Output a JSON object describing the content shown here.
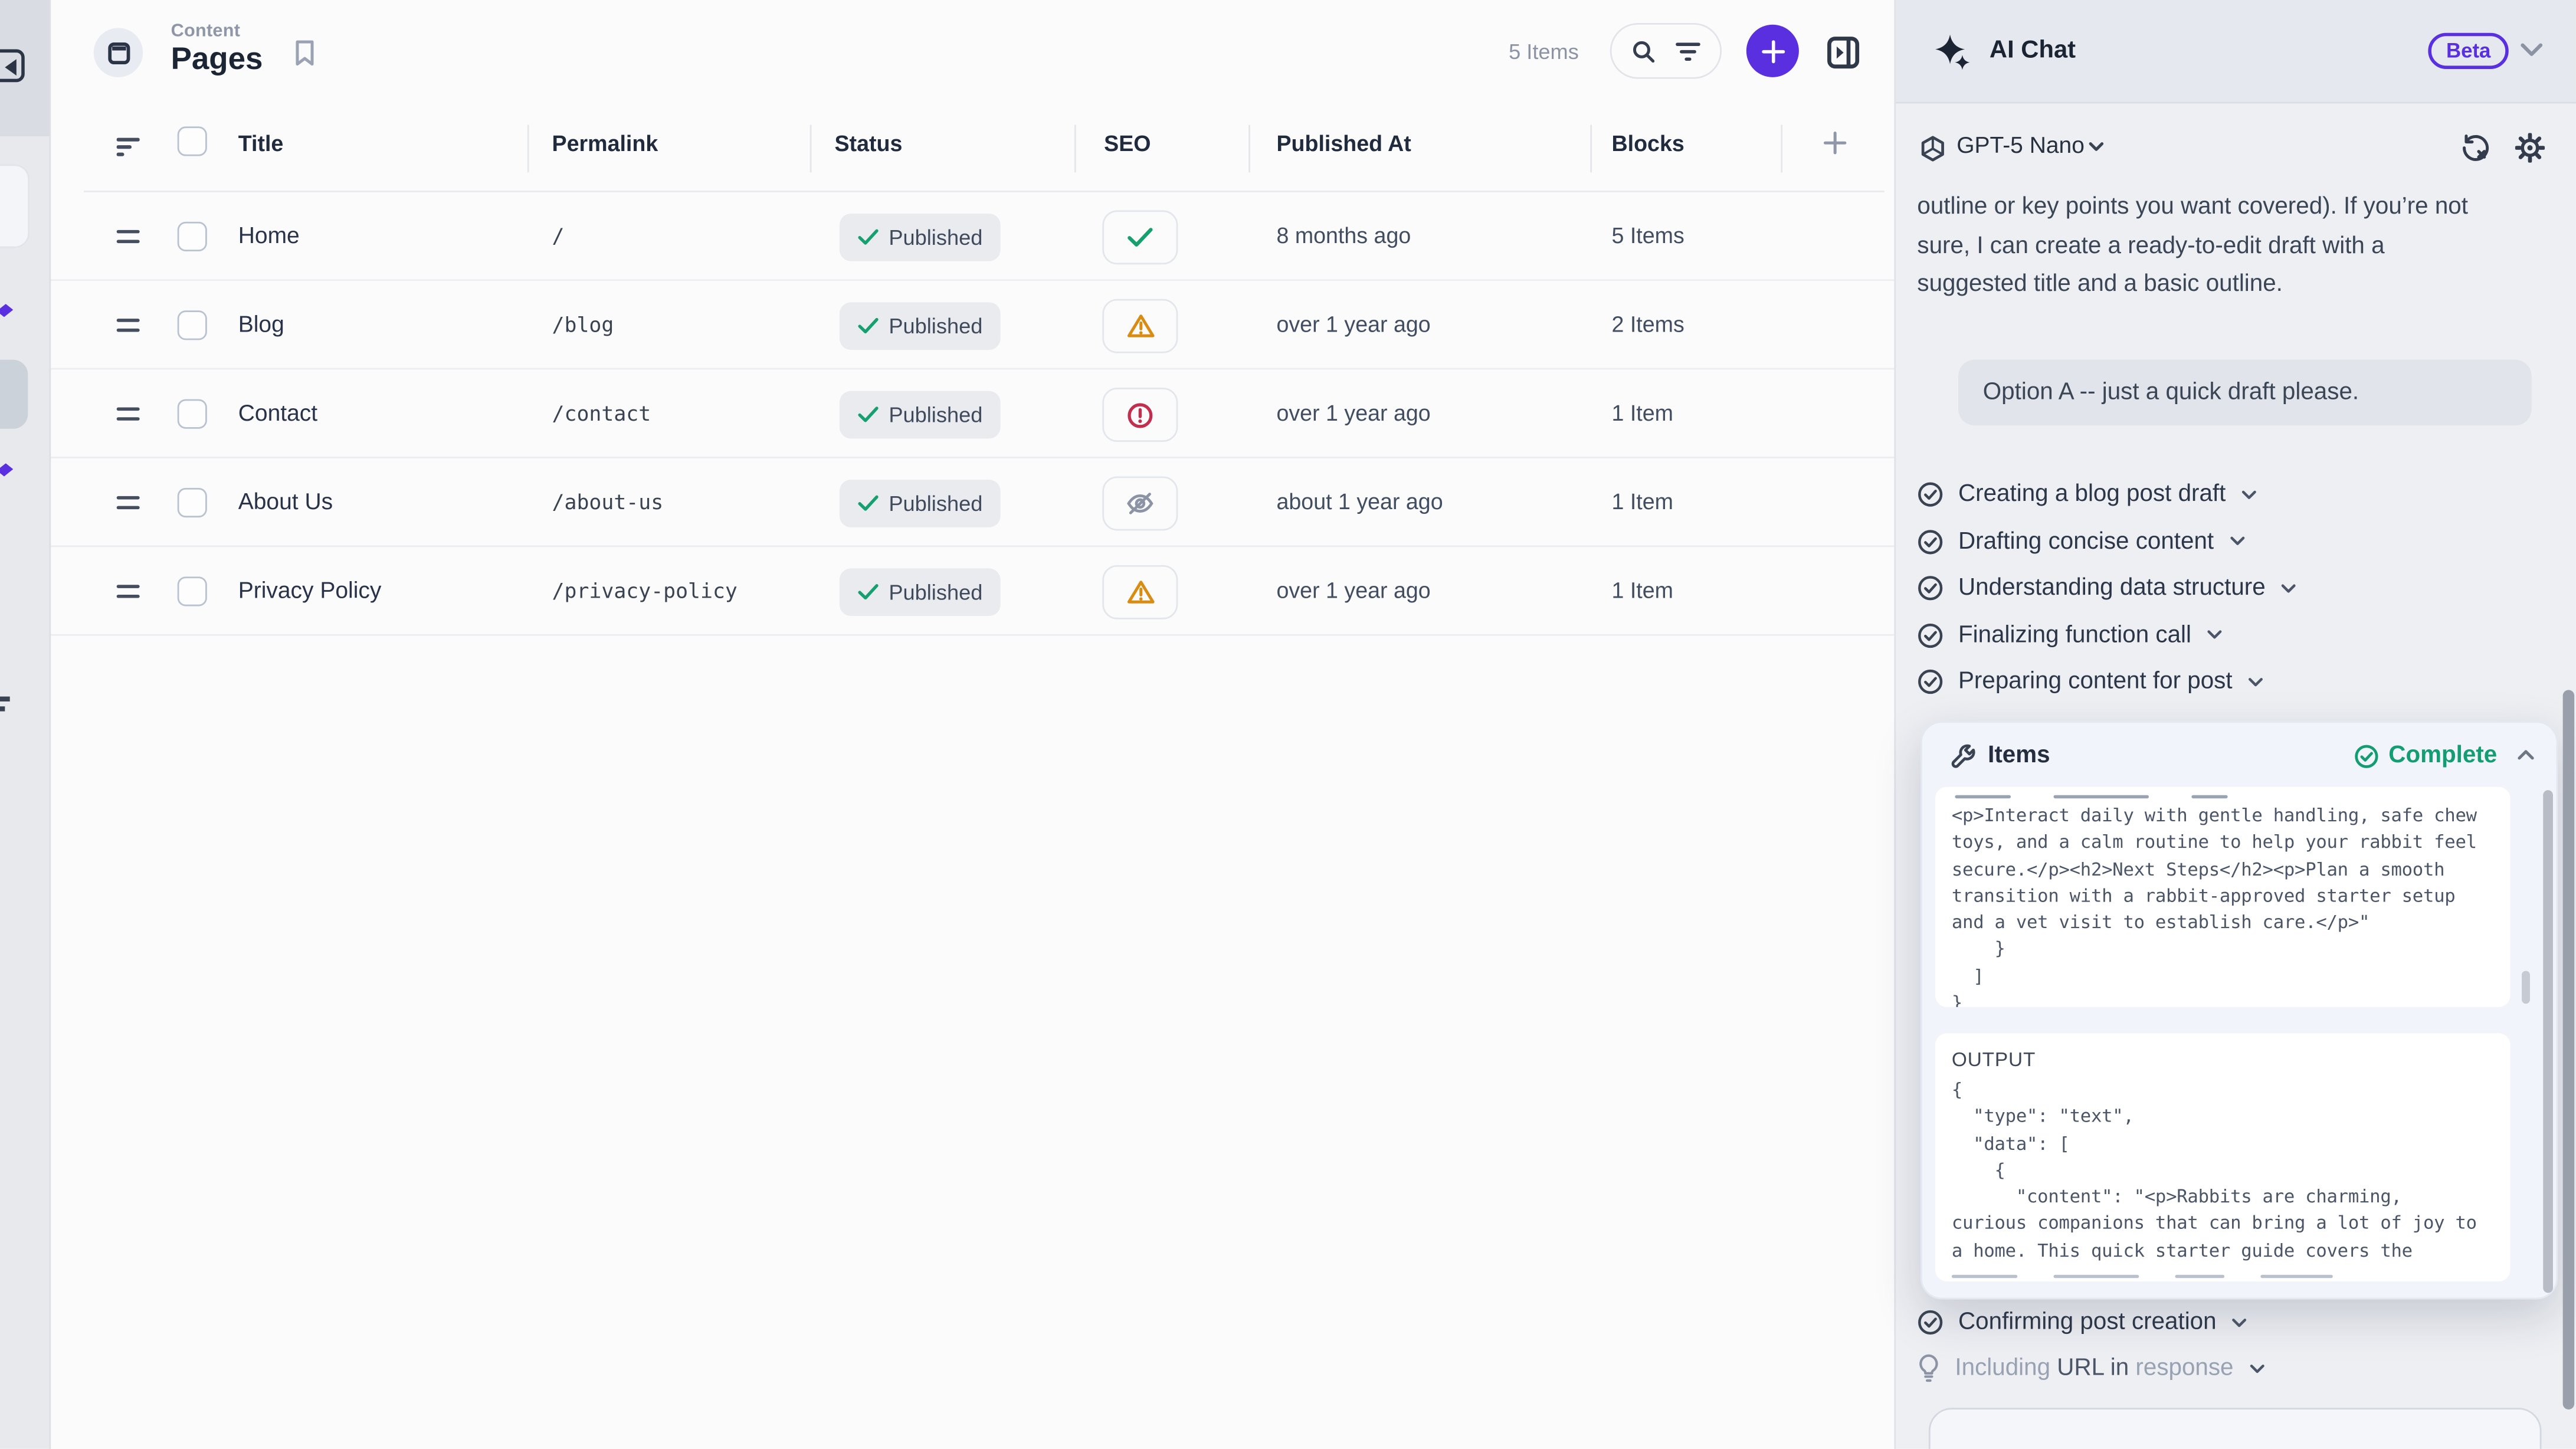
{
  "header": {
    "section": "Content",
    "title": "Pages",
    "items_count": "5 Items"
  },
  "table": {
    "columns": [
      "Title",
      "Permalink",
      "Status",
      "SEO",
      "Published At",
      "Blocks"
    ],
    "rows": [
      {
        "title": "Home",
        "permalink": "/",
        "status": "Published",
        "seo": "check",
        "published_at": "8 months ago",
        "blocks": "5 Items"
      },
      {
        "title": "Blog",
        "permalink": "/blog",
        "status": "Published",
        "seo": "warning",
        "published_at": "over 1 year ago",
        "blocks": "2 Items"
      },
      {
        "title": "Contact",
        "permalink": "/contact",
        "status": "Published",
        "seo": "error",
        "published_at": "over 1 year ago",
        "blocks": "1 Item"
      },
      {
        "title": "About Us",
        "permalink": "/about-us",
        "status": "Published",
        "seo": "hidden",
        "published_at": "about 1 year ago",
        "blocks": "1 Item"
      },
      {
        "title": "Privacy Policy",
        "permalink": "/privacy-policy",
        "status": "Published",
        "seo": "warning",
        "published_at": "over 1 year ago",
        "blocks": "1 Item"
      }
    ]
  },
  "chat": {
    "title": "AI Chat",
    "beta": "Beta",
    "model": "GPT-5 Nano",
    "assistant_lines": [
      "outline or key points you want covered). If you’re not",
      "sure, I can create a ready-to-edit draft with a",
      "suggested title and a basic outline."
    ],
    "user_message": "Option A -- just a quick draft please.",
    "tasks": [
      "Creating a blog post draft",
      "Drafting concise content",
      "Understanding data structure",
      "Finalizing function call",
      "Preparing content for post"
    ],
    "tool_panel": {
      "title": "Items",
      "status": "Complete",
      "input_lines": [
        "<p>Interact daily with gentle handling, safe chew",
        "toys, and a calm routine to help your rabbit feel",
        "secure.</p><h2>Next Steps</h2><p>Plan a smooth",
        "transition with a rabbit-approved starter setup",
        "and a vet visit to establish care.</p>\"",
        "    }",
        "  ]",
        "}"
      ],
      "output_label": "OUTPUT",
      "output_lines": [
        "{",
        "  \"type\": \"text\",",
        "  \"data\": [",
        "    {",
        "      \"content\": \"<p>Rabbits are charming,",
        "curious companions that can bring a lot of joy to",
        "a home. This quick starter guide covers the"
      ]
    },
    "post_task": "Confirming post creation",
    "hint_task": {
      "parts": [
        {
          "text": "Including ",
          "style": "muted"
        },
        {
          "text": "URL in ",
          "style": "strong"
        },
        {
          "text": "response",
          "style": "muted"
        }
      ]
    }
  },
  "colors": {
    "accent_purple": "#5a2fe0",
    "success_green": "#16a070",
    "warning_orange": "#d98b12",
    "error_red": "#c22f4e",
    "muted_gray": "#8b93a5"
  }
}
